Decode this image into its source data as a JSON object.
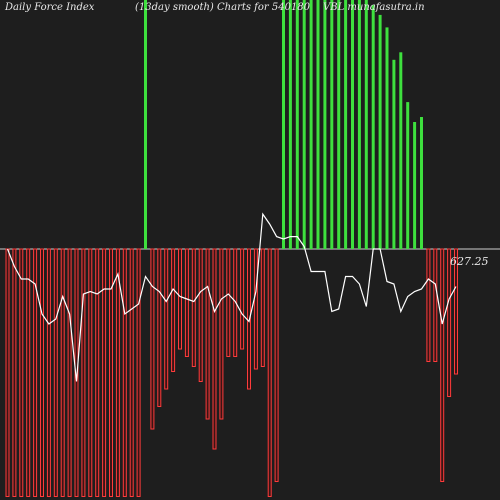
{
  "header": {
    "title_left": "Daily Force  Index",
    "title_mid": "(13day smooth) Charts for 540180",
    "title_right": "VBL munafasutra.in"
  },
  "chart_data": {
    "type": "bar",
    "title": "Daily Force Index (13day smooth) Charts for 540180",
    "last_value_label": "627.25",
    "zero_line": 0,
    "ylim": [
      -1,
      1
    ],
    "colors": {
      "positive": "#3ee03e",
      "negative": "#ff3b3b",
      "line": "#ffffff",
      "background": "#1e1e1e",
      "zero_line": "#cfcfcf"
    },
    "bars": [
      -0.99,
      -0.99,
      -0.99,
      -0.99,
      -0.99,
      -0.99,
      -0.99,
      -0.99,
      -0.99,
      -0.99,
      -0.99,
      -0.99,
      -0.99,
      -0.99,
      -0.99,
      -0.99,
      -0.99,
      -0.99,
      -0.99,
      -0.99,
      1.0,
      -0.72,
      -0.63,
      -0.56,
      -0.49,
      -0.4,
      -0.43,
      -0.47,
      -0.53,
      -0.68,
      -0.8,
      -0.68,
      -0.43,
      -0.43,
      -0.4,
      -0.56,
      -0.48,
      -0.47,
      -0.99,
      -0.93,
      1.0,
      1.0,
      1.0,
      1.0,
      1.0,
      1.0,
      1.0,
      1.0,
      1.0,
      1.0,
      1.0,
      1.0,
      1.0,
      0.98,
      0.94,
      0.89,
      0.76,
      0.79,
      0.59,
      0.51,
      0.53,
      -0.45,
      -0.45,
      -0.93,
      -0.59,
      -0.5
    ],
    "line": [
      0.0,
      -0.07,
      -0.12,
      -0.12,
      -0.14,
      -0.26,
      -0.3,
      -0.28,
      -0.19,
      -0.26,
      -0.53,
      -0.18,
      -0.17,
      -0.18,
      -0.16,
      -0.16,
      -0.1,
      -0.26,
      -0.24,
      -0.22,
      -0.11,
      -0.15,
      -0.17,
      -0.21,
      -0.16,
      -0.19,
      -0.2,
      -0.21,
      -0.17,
      -0.15,
      -0.25,
      -0.2,
      -0.18,
      -0.21,
      -0.26,
      -0.29,
      -0.17,
      0.14,
      0.1,
      0.05,
      0.04,
      0.05,
      0.05,
      0.01,
      -0.09,
      -0.09,
      -0.09,
      -0.25,
      -0.24,
      -0.11,
      -0.11,
      -0.14,
      -0.23,
      0.0,
      0.0,
      -0.13,
      -0.14,
      -0.25,
      -0.19,
      -0.17,
      -0.16,
      -0.12,
      -0.14,
      -0.3,
      -0.2,
      -0.15
    ]
  }
}
